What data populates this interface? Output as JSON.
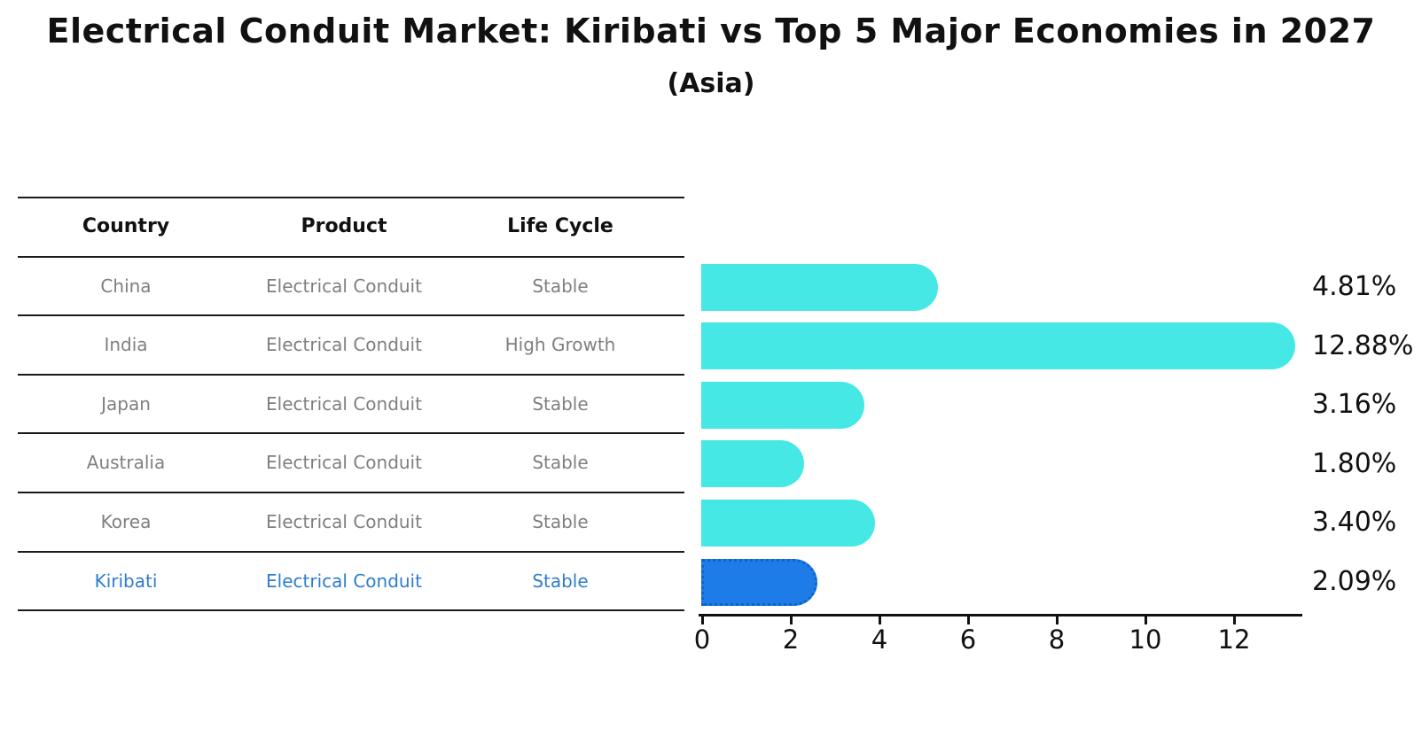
{
  "title": "Electrical Conduit Market: Kiribati vs Top 5 Major Economies in 2027",
  "subtitle": "(Asia)",
  "table": {
    "headers": [
      "Country",
      "Product",
      "Life Cycle"
    ],
    "rows": [
      {
        "country": "China",
        "product": "Electrical Conduit",
        "life_cycle": "Stable",
        "highlight": false
      },
      {
        "country": "India",
        "product": "Electrical Conduit",
        "life_cycle": "High Growth",
        "highlight": false
      },
      {
        "country": "Japan",
        "product": "Electrical Conduit",
        "life_cycle": "Stable",
        "highlight": false
      },
      {
        "country": "Australia",
        "product": "Electrical Conduit",
        "life_cycle": "Stable",
        "highlight": false
      },
      {
        "country": "Korea",
        "product": "Electrical Conduit",
        "life_cycle": "Stable",
        "highlight": false
      },
      {
        "country": "Kiribati",
        "product": "Electrical Conduit",
        "life_cycle": "Stable",
        "highlight": true
      }
    ]
  },
  "chart_data": {
    "type": "bar",
    "orientation": "horizontal",
    "title": "Electrical Conduit Market: Kiribati vs Top 5 Major Economies in 2027",
    "subtitle": "(Asia)",
    "categories": [
      "China",
      "India",
      "Japan",
      "Australia",
      "Korea",
      "Kiribati"
    ],
    "values": [
      4.81,
      12.88,
      3.16,
      1.8,
      3.4,
      2.09
    ],
    "value_labels": [
      "4.81%",
      "12.88%",
      "3.16%",
      "1.80%",
      "3.40%",
      "2.09%"
    ],
    "xlim": [
      0,
      13.5
    ],
    "xticks": [
      0,
      2,
      4,
      6,
      8,
      10,
      12
    ],
    "grid": false,
    "legend": false,
    "bar_color": "#45e8e4",
    "highlight_index": 5,
    "highlight_color": "#1e7ce8",
    "highlight_border_color": "#1062c8",
    "highlight_border_style": "dotted"
  },
  "colors": {
    "background": "#ffffff",
    "text": "#111111",
    "muted_text": "#7f7f7f",
    "highlight_text": "#2e7dcd",
    "table_line": "#1a1a1a"
  }
}
